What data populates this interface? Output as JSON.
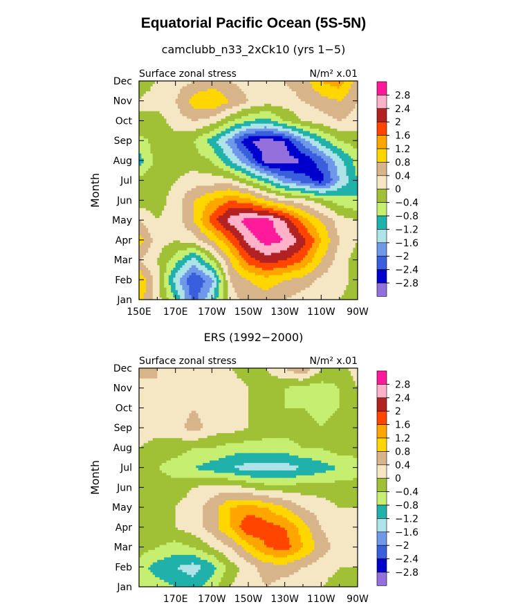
{
  "page": {
    "title": "Equatorial Pacific Ocean (5S-5N)"
  },
  "colorbar": {
    "levels": [
      "2.8",
      "2.4",
      "2",
      "1.6",
      "1.2",
      "0.8",
      "0.4",
      "0",
      "−0.4",
      "−0.8",
      "−1.2",
      "−1.6",
      "−2",
      "−2.4",
      "−2.8"
    ],
    "colors": [
      "#ff1a9c",
      "#ffb2c8",
      "#b22222",
      "#ff4500",
      "#ffa500",
      "#ffd700",
      "#d8b48a",
      "#f5e6c4",
      "#a0c036",
      "#c6ee70",
      "#20b2aa",
      "#aee3e8",
      "#6f98ea",
      "#3a5fdd",
      "#0000cd",
      "#9370db"
    ]
  },
  "chart_data": [
    {
      "type": "heatmap",
      "title": "camclubb_n33_2xCk10 (yrs 1−5)",
      "left_label": "Surface zonal stress",
      "right_label": "N/m² x.01",
      "ylabel": "Month",
      "xlabel": "",
      "x_ticklabels": [
        "150E",
        "170E",
        "170W",
        "150W",
        "130W",
        "110W",
        "90W"
      ],
      "y_ticklabels": [
        "Jan",
        "Feb",
        "Mar",
        "Apr",
        "May",
        "Jun",
        "Jul",
        "Aug",
        "Sep",
        "Oct",
        "Nov",
        "Dec"
      ],
      "xlim": [
        150,
        270
      ],
      "ylim": [
        1,
        12
      ],
      "values_unit": "N/m² x.01",
      "x": [
        150,
        160,
        170,
        180,
        190,
        200,
        210,
        220,
        230,
        240,
        250,
        260,
        270
      ],
      "y": [
        1,
        2,
        3,
        4,
        5,
        6,
        7,
        8,
        9,
        10,
        11,
        12
      ],
      "z": [
        [
          1.0,
          0.2,
          -0.8,
          -2.2,
          -1.2,
          0.2,
          0.6,
          0.6,
          0.4,
          0.2,
          0.1,
          0.0,
          -0.1
        ],
        [
          1.2,
          0.2,
          -1.4,
          -2.4,
          -1.8,
          0.4,
          0.8,
          1.0,
          0.8,
          0.6,
          0.3,
          0.1,
          -0.1
        ],
        [
          0.4,
          0.0,
          -0.6,
          -1.4,
          -0.4,
          0.8,
          1.8,
          2.2,
          2.0,
          1.6,
          0.8,
          0.2,
          -0.2
        ],
        [
          1.0,
          0.2,
          0.0,
          0.2,
          0.8,
          1.6,
          2.6,
          3.0,
          2.8,
          2.2,
          1.2,
          0.4,
          0.0
        ],
        [
          0.4,
          0.0,
          0.2,
          0.8,
          1.8,
          2.6,
          3.0,
          3.0,
          2.4,
          1.4,
          0.8,
          0.2,
          0.0
        ],
        [
          -0.2,
          -0.2,
          0.2,
          0.8,
          1.2,
          1.6,
          1.4,
          0.8,
          0.4,
          0.2,
          -0.2,
          -0.6,
          -0.8
        ],
        [
          -0.2,
          -0.2,
          0.0,
          0.2,
          0.2,
          0.2,
          -0.4,
          -1.0,
          -1.8,
          -2.2,
          -2.6,
          -1.6,
          -0.8
        ],
        [
          -1.0,
          -0.2,
          -0.2,
          -0.2,
          -0.4,
          -1.2,
          -2.0,
          -3.0,
          -3.0,
          -2.8,
          -2.2,
          -1.4,
          -0.6
        ],
        [
          -0.6,
          -0.2,
          -0.2,
          -0.4,
          -1.0,
          -1.8,
          -2.8,
          -3.0,
          -2.8,
          -1.8,
          -1.0,
          -0.4,
          -0.2
        ],
        [
          0.0,
          -0.2,
          0.2,
          0.4,
          0.2,
          -0.4,
          -0.8,
          -1.0,
          -0.4,
          0.0,
          0.2,
          0.4,
          0.2
        ],
        [
          0.0,
          0.2,
          0.4,
          1.0,
          1.2,
          0.8,
          0.4,
          0.2,
          0.2,
          0.4,
          0.6,
          0.8,
          0.4
        ],
        [
          -0.2,
          0.0,
          0.2,
          0.4,
          0.6,
          0.4,
          0.2,
          0.2,
          0.4,
          0.6,
          1.2,
          1.4,
          0.6
        ]
      ]
    },
    {
      "type": "heatmap",
      "title": "ERS (1992−2000)",
      "left_label": "Surface zonal stress",
      "right_label": "N/m² x.01",
      "ylabel": "Month",
      "xlabel": "",
      "x_ticklabels": [
        "",
        "170E",
        "170W",
        "150W",
        "130W",
        "110W",
        "90W"
      ],
      "y_ticklabels": [
        "Jan",
        "Feb",
        "Mar",
        "Apr",
        "May",
        "Jun",
        "Jul",
        "Aug",
        "Sep",
        "Oct",
        "Nov",
        "Dec"
      ],
      "xlim": [
        150,
        270
      ],
      "ylim": [
        1,
        12
      ],
      "values_unit": "N/m² x.01",
      "x": [
        150,
        160,
        170,
        180,
        190,
        200,
        210,
        220,
        230,
        240,
        250,
        260,
        270
      ],
      "y": [
        1,
        2,
        3,
        4,
        5,
        6,
        7,
        8,
        9,
        10,
        11,
        12
      ],
      "z": [
        [
          -0.4,
          -0.6,
          -0.8,
          -1.0,
          -0.6,
          0.0,
          0.2,
          0.4,
          0.2,
          0.2,
          0.0,
          -0.2,
          0.0
        ],
        [
          -0.6,
          -1.0,
          -1.2,
          -1.4,
          -1.0,
          -0.2,
          0.2,
          0.6,
          0.6,
          0.4,
          0.2,
          0.0,
          0.0
        ],
        [
          -0.2,
          -0.4,
          -0.6,
          -0.4,
          0.0,
          0.4,
          1.0,
          1.6,
          1.8,
          1.2,
          0.6,
          0.2,
          0.0
        ],
        [
          0.0,
          0.0,
          0.0,
          0.2,
          0.6,
          1.2,
          2.0,
          1.8,
          1.6,
          1.0,
          0.4,
          0.2,
          0.0
        ],
        [
          0.0,
          -0.2,
          0.0,
          0.2,
          0.6,
          1.2,
          1.4,
          1.2,
          0.8,
          0.4,
          0.2,
          0.0,
          0.0
        ],
        [
          0.0,
          -0.2,
          -0.2,
          0.0,
          0.2,
          0.2,
          0.0,
          -0.2,
          -0.2,
          -0.2,
          -0.2,
          -0.2,
          -0.2
        ],
        [
          -0.2,
          -0.4,
          -0.6,
          -0.8,
          -1.0,
          -1.2,
          -1.4,
          -1.4,
          -1.4,
          -1.2,
          -1.0,
          -0.8,
          -0.6
        ],
        [
          0.0,
          -0.2,
          -0.2,
          -0.4,
          -0.4,
          -0.6,
          -0.6,
          -0.6,
          -0.6,
          -0.4,
          -0.4,
          -0.2,
          -0.2
        ],
        [
          0.2,
          0.2,
          0.2,
          0.6,
          0.2,
          0.2,
          0.0,
          -0.2,
          -0.2,
          -0.2,
          -0.4,
          -0.2,
          0.0
        ],
        [
          0.2,
          0.4,
          0.2,
          0.4,
          0.2,
          0.2,
          0.0,
          -0.2,
          -0.4,
          -0.4,
          -0.6,
          -0.4,
          0.0
        ],
        [
          0.2,
          0.4,
          0.4,
          0.2,
          0.2,
          0.2,
          0.0,
          -0.2,
          -0.4,
          -0.6,
          -0.6,
          -0.4,
          0.0
        ],
        [
          0.6,
          0.4,
          0.2,
          0.2,
          0.0,
          0.0,
          -0.2,
          0.0,
          0.4,
          0.8,
          0.0,
          -0.2,
          0.2
        ]
      ]
    }
  ]
}
